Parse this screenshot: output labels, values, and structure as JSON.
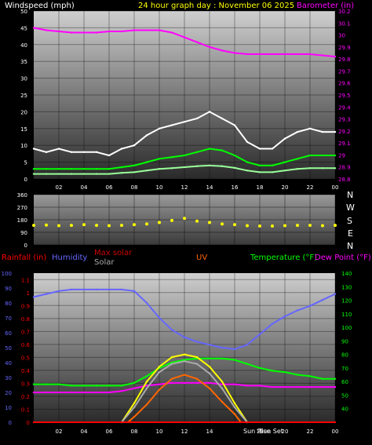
{
  "header": {
    "left_label": "Windspeed (mph)",
    "center_label": "24 hour graph day : November 06 2025",
    "right_label": "Barometer (in)"
  },
  "colors": {
    "white": "#ffffff",
    "yellow": "#ffff00",
    "magenta": "#ff00ff",
    "green": "#00ff00",
    "light_green": "#99ff99",
    "rain_red": "#ff0000",
    "humidity_blue": "#6666ff",
    "maxsolar_red": "#cc0000",
    "solar_gray": "#aaaaaa",
    "uv_orange": "#ff6600"
  },
  "wind_chart": {
    "y_ticks_left": [
      "0",
      "5",
      "10",
      "15",
      "20",
      "25",
      "30",
      "35",
      "40",
      "45",
      "50"
    ],
    "y_ticks_right": [
      "28.8",
      "28.9",
      "29",
      "29.1",
      "29.2",
      "29.3",
      "29.4",
      "29.5",
      "29.6",
      "29.7",
      "29.8",
      "29.9",
      "30",
      "30.1",
      "30.2"
    ],
    "x_ticks": [
      "02",
      "04",
      "06",
      "08",
      "10",
      "12",
      "14",
      "16",
      "18",
      "20",
      "22",
      "00"
    ]
  },
  "direction_chart": {
    "y_ticks": [
      "360",
      "270",
      "180",
      "90",
      "0"
    ],
    "compass": [
      "N",
      "W",
      "S",
      "E",
      "N"
    ]
  },
  "bottom_legend": {
    "rainfall": "Rainfall (in)",
    "humidity": "Humidity",
    "max_solar": "Max solar",
    "solar": "Solar",
    "uv": "UV",
    "temperature": "Temperature (°F)",
    "dewpoint": "Dew Point (°F)"
  },
  "bottom_chart": {
    "y_ticks_humidity": [
      "0",
      "10",
      "20",
      "30",
      "40",
      "50",
      "60",
      "70",
      "80",
      "90",
      "100"
    ],
    "y_ticks_rain": [
      "0",
      "0.1",
      "0.2",
      "0.3",
      "0.4",
      "0.5",
      "0.6",
      "0.7",
      "0.8",
      "0.9",
      "1",
      "1.1"
    ],
    "y_ticks_temp": [
      "40",
      "50",
      "60",
      "70",
      "80",
      "90",
      "100",
      "110",
      "120",
      "130",
      "140"
    ],
    "x_ticks": [
      "02",
      "04",
      "06",
      "08",
      "10",
      "12",
      "14",
      "16",
      "18",
      "20",
      "22",
      "00"
    ],
    "sunrise_label": "Sun Rise",
    "sunset_label": "Sun Set"
  },
  "chart_data": [
    {
      "type": "line",
      "title": "24 hour graph day : November 06 2025",
      "x_unit": "hour",
      "xlim": [
        0,
        24
      ],
      "ylabel": "Windspeed (mph)",
      "ylim": [
        0,
        50
      ],
      "y2label": "Barometer (in)",
      "y2lim": [
        28.8,
        30.2
      ],
      "series": [
        {
          "name": "Barometer",
          "axis": "right",
          "color": "#ff00ff",
          "x": [
            0,
            1,
            2,
            3,
            4,
            5,
            6,
            7,
            8,
            9,
            10,
            11,
            12,
            13,
            14,
            15,
            16,
            17,
            18,
            19,
            20,
            21,
            22,
            23,
            24
          ],
          "values": [
            30.06,
            30.04,
            30.03,
            30.02,
            30.02,
            30.02,
            30.03,
            30.03,
            30.04,
            30.04,
            30.04,
            30.02,
            29.98,
            29.94,
            29.9,
            29.87,
            29.85,
            29.84,
            29.84,
            29.84,
            29.84,
            29.84,
            29.84,
            29.83,
            29.82
          ]
        },
        {
          "name": "Wind gust",
          "axis": "left",
          "color": "#ffffff",
          "x": [
            0,
            1,
            2,
            3,
            4,
            5,
            6,
            7,
            8,
            9,
            10,
            11,
            12,
            13,
            14,
            15,
            16,
            17,
            18,
            19,
            20,
            21,
            22,
            23,
            24
          ],
          "values": [
            9,
            8,
            9,
            8,
            8,
            8,
            7,
            9,
            10,
            13,
            15,
            16,
            17,
            18,
            20,
            18,
            16,
            11,
            9,
            9,
            12,
            14,
            15,
            14,
            14
          ]
        },
        {
          "name": "Wind speed",
          "axis": "left",
          "color": "#00ff00",
          "x": [
            0,
            1,
            2,
            3,
            4,
            5,
            6,
            7,
            8,
            9,
            10,
            11,
            12,
            13,
            14,
            15,
            16,
            17,
            18,
            19,
            20,
            21,
            22,
            23,
            24
          ],
          "values": [
            3,
            3,
            3,
            3,
            3,
            3,
            3,
            3.5,
            4,
            5,
            6,
            6.5,
            7,
            8,
            9,
            8.5,
            7,
            5,
            4,
            4,
            5,
            6,
            7,
            7,
            7
          ]
        },
        {
          "name": "Wind average",
          "axis": "left",
          "color": "#99ff99",
          "x": [
            0,
            1,
            2,
            3,
            4,
            5,
            6,
            7,
            8,
            9,
            10,
            11,
            12,
            13,
            14,
            15,
            16,
            17,
            18,
            19,
            20,
            21,
            22,
            23,
            24
          ],
          "values": [
            1.5,
            1.5,
            1.5,
            1.5,
            1.5,
            1.5,
            1.5,
            1.8,
            2,
            2.5,
            3,
            3.2,
            3.5,
            3.8,
            4,
            3.8,
            3.3,
            2.5,
            2,
            2,
            2.5,
            3,
            3.2,
            3.2,
            3.2
          ]
        }
      ]
    },
    {
      "type": "scatter",
      "xlim": [
        0,
        24
      ],
      "ylim": [
        0,
        360
      ],
      "series": [
        {
          "name": "Wind direction",
          "color": "#ffff00",
          "x": [
            0,
            1,
            2,
            3,
            4,
            5,
            6,
            7,
            8,
            9,
            10,
            11,
            12,
            13,
            14,
            15,
            16,
            17,
            18,
            19,
            20,
            21,
            22,
            23,
            24
          ],
          "values": [
            140,
            142,
            138,
            140,
            145,
            140,
            138,
            140,
            145,
            150,
            160,
            175,
            190,
            170,
            160,
            150,
            145,
            138,
            135,
            135,
            138,
            140,
            140,
            138,
            140
          ]
        }
      ]
    },
    {
      "type": "line",
      "xlim": [
        0,
        24
      ],
      "ylabel": "Humidity",
      "ylim": [
        0,
        100
      ],
      "y2label": "Temperature (°F)",
      "y2lim": [
        30,
        140
      ],
      "series": [
        {
          "name": "Humidity",
          "axis": "left",
          "color": "#6666ff",
          "x": [
            0,
            1,
            2,
            3,
            4,
            5,
            6,
            7,
            8,
            9,
            10,
            11,
            12,
            13,
            14,
            15,
            16,
            17,
            18,
            19,
            20,
            21,
            22,
            23,
            24
          ],
          "values": [
            84,
            86,
            88,
            89,
            89,
            89,
            89,
            89,
            88,
            80,
            70,
            62,
            57,
            54,
            52,
            50,
            49,
            52,
            59,
            66,
            71,
            75,
            78,
            82,
            86
          ]
        },
        {
          "name": "Temperature",
          "axis": "right",
          "color": "#00ff00",
          "x": [
            0,
            1,
            2,
            3,
            4,
            5,
            6,
            7,
            8,
            9,
            10,
            11,
            12,
            13,
            14,
            15,
            16,
            17,
            18,
            19,
            20,
            21,
            22,
            23,
            24
          ],
          "values": [
            58,
            58,
            58,
            57,
            57,
            57,
            57,
            57,
            59,
            64,
            70,
            74,
            76,
            77,
            77,
            77,
            76,
            73,
            70,
            68,
            67,
            65,
            64,
            62,
            62
          ]
        },
        {
          "name": "Dew Point",
          "axis": "right",
          "color": "#ff00ff",
          "x": [
            0,
            1,
            2,
            3,
            4,
            5,
            6,
            7,
            8,
            9,
            10,
            11,
            12,
            13,
            14,
            15,
            16,
            17,
            18,
            19,
            20,
            21,
            22,
            23,
            24
          ],
          "values": [
            52,
            52,
            52,
            52,
            52,
            52,
            52,
            53,
            55,
            57,
            58,
            59,
            59,
            59,
            59,
            58,
            58,
            57,
            57,
            56,
            56,
            56,
            56,
            56,
            56
          ]
        },
        {
          "name": "Max solar",
          "axis": "right",
          "color": "#ffff00",
          "x": [
            7,
            8,
            9,
            10,
            11,
            12,
            13,
            14,
            15,
            16,
            17
          ],
          "values": [
            30,
            44,
            60,
            71,
            78,
            80,
            78,
            71,
            60,
            44,
            30
          ]
        },
        {
          "name": "Solar",
          "axis": "right",
          "color": "#aaaaaa",
          "x": [
            7,
            8,
            9,
            10,
            11,
            12,
            13,
            14,
            15,
            16,
            17
          ],
          "values": [
            30,
            41,
            55,
            67,
            73,
            75,
            73,
            66,
            55,
            41,
            30
          ]
        },
        {
          "name": "UV",
          "axis": "right",
          "color": "#ff6600",
          "x": [
            7.5,
            8,
            9,
            10,
            11,
            12,
            13,
            14,
            15,
            16,
            16.5
          ],
          "values": [
            30,
            34,
            43,
            54,
            62,
            65,
            62,
            55,
            45,
            36,
            30
          ]
        },
        {
          "name": "Rainfall",
          "axis": "left",
          "color": "#ff0000",
          "x": [
            0,
            24
          ],
          "values": [
            0,
            0
          ]
        }
      ]
    }
  ]
}
